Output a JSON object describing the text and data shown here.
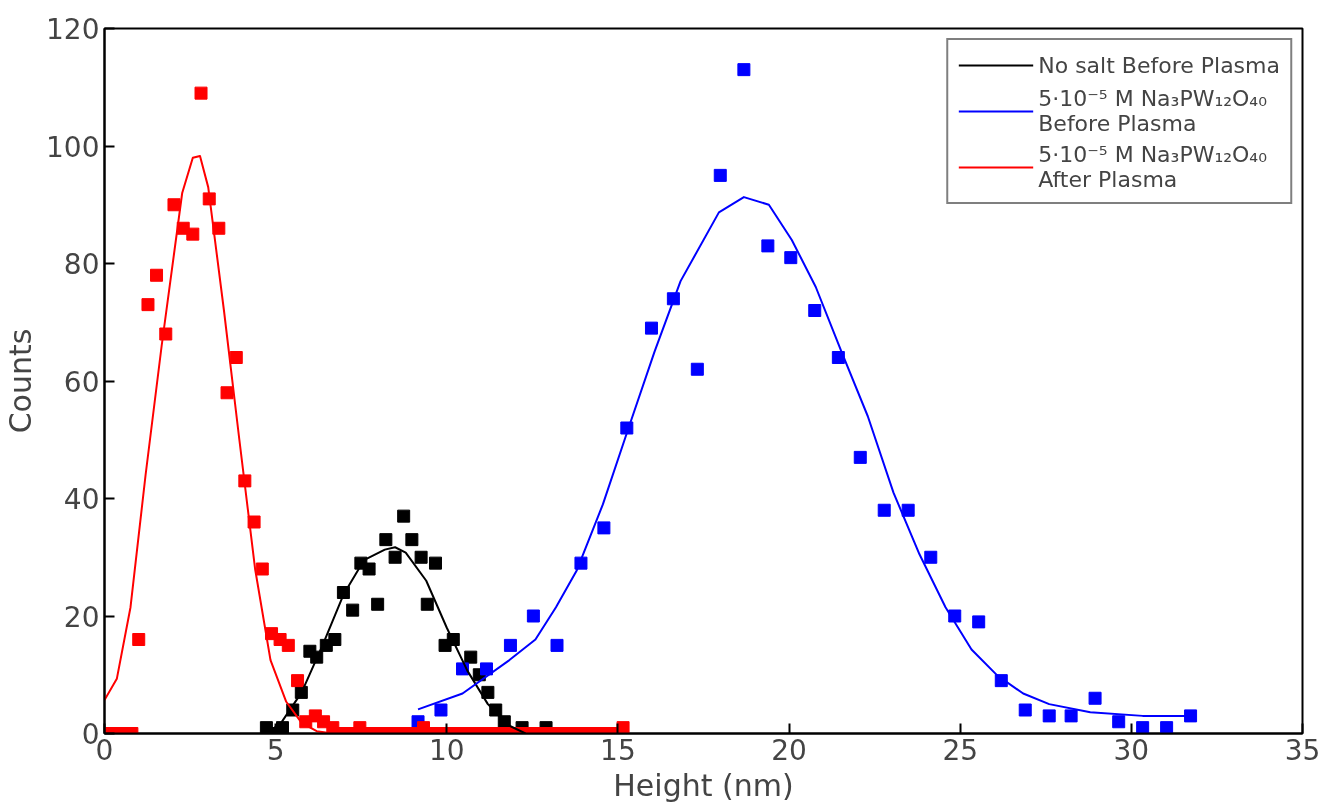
{
  "chart_data": {
    "type": "scatter",
    "xlabel": "Height (nm)",
    "ylabel": "Counts",
    "xlim": [
      0,
      35
    ],
    "ylim": [
      0,
      120
    ],
    "xticks": [
      0,
      5,
      10,
      15,
      20,
      25,
      30,
      35
    ],
    "yticks": [
      0,
      20,
      40,
      60,
      80,
      100,
      120
    ],
    "grid": false,
    "legend": "top right",
    "series": [
      {
        "marker": "square",
        "color": "#000000",
        "x": [
          4.73,
          4.98,
          5.2,
          5.5,
          5.75,
          6.0,
          6.2,
          6.48,
          6.73,
          6.98,
          7.25,
          7.49,
          7.73,
          7.98,
          8.22,
          8.49,
          8.74,
          8.98,
          9.25,
          9.43,
          9.67,
          9.95,
          10.19,
          10.43,
          10.7,
          10.95,
          11.2,
          11.43,
          11.68,
          12.2,
          12.9
        ],
        "values": [
          1,
          0,
          1,
          4,
          7,
          14,
          13,
          15,
          16,
          24,
          21,
          29,
          28,
          22,
          33,
          30,
          37,
          33,
          30,
          22,
          29,
          15,
          16,
          null,
          13,
          10,
          7,
          4,
          2,
          1,
          1
        ]
      },
      {
        "marker": "square",
        "color": "#0000ff",
        "x": [
          9.16,
          9.83,
          10.46,
          11.16,
          11.86,
          12.53,
          13.22,
          13.92,
          14.59,
          15.26,
          15.98,
          16.62,
          17.32,
          17.99,
          18.68,
          19.38,
          20.05,
          20.75,
          21.44,
          22.08,
          22.78,
          23.48,
          24.14,
          24.84,
          25.54,
          26.2,
          26.9,
          27.6,
          28.24,
          28.94,
          29.63,
          30.33,
          31.03,
          31.73
        ],
        "values": [
          2,
          4,
          11,
          11,
          15,
          20,
          15,
          29,
          35,
          52,
          69,
          74,
          62,
          95,
          113,
          83,
          81,
          72,
          64,
          47,
          38,
          38,
          30,
          20,
          19,
          9,
          4,
          3,
          3,
          6,
          2,
          1,
          1,
          3
        ]
      },
      {
        "marker": "square",
        "color": "#ff0000",
        "x": [
          0.2,
          0.5,
          0.8,
          1.0,
          1.27,
          1.52,
          1.79,
          2.03,
          2.3,
          2.58,
          2.82,
          3.06,
          3.34,
          3.58,
          3.85,
          4.1,
          4.37,
          4.61,
          4.88,
          5.13,
          5.37,
          5.64,
          5.88,
          6.16,
          6.4,
          6.67,
          6.93,
          7.2,
          7.46,
          7.73,
          7.99,
          8.26,
          8.52,
          8.79,
          9.05,
          9.32,
          9.58,
          9.85,
          10.11,
          10.38,
          10.64,
          10.91,
          11.17,
          11.44,
          11.7,
          11.97,
          12.23,
          12.5,
          12.76,
          13.03,
          13.29,
          13.56,
          13.82,
          14.09,
          14.35,
          14.62,
          14.88,
          15.15
        ],
        "values": [
          0,
          0,
          0,
          16,
          73,
          78,
          68,
          90,
          86,
          85,
          109,
          91,
          86,
          58,
          64,
          43,
          36,
          28,
          17,
          16,
          15,
          9,
          2,
          3,
          2,
          1,
          0,
          0,
          1,
          0,
          0,
          0,
          0,
          0,
          0,
          1,
          0,
          0,
          0,
          0,
          0,
          0,
          0,
          0,
          0,
          0,
          0,
          0,
          0,
          0,
          0,
          0,
          0,
          0,
          0,
          0,
          0,
          1
        ]
      },
      {
        "type": "line",
        "name": "No salt Before Plasma",
        "color": "#000000",
        "x": [
          4.73,
          5.16,
          5.76,
          6.37,
          6.98,
          7.58,
          8.19,
          8.49,
          8.8,
          9.4,
          10.0,
          10.6,
          11.2,
          11.8,
          12.3
        ],
        "values": [
          0,
          1.8,
          7,
          15,
          23.6,
          29.5,
          31.3,
          31.7,
          30.8,
          26,
          18,
          10.7,
          5,
          1.4,
          0
        ]
      },
      {
        "type": "line",
        "name": "5·10⁻⁵ M Na₃PW₁₂O₄₀\nBefore Plasma",
        "color": "#0000ff",
        "x": [
          9.16,
          10.46,
          11.83,
          12.59,
          13.19,
          13.8,
          14.56,
          15.31,
          16.07,
          16.83,
          17.95,
          18.68,
          19.41,
          20.08,
          20.78,
          21.53,
          22.3,
          23.05,
          23.81,
          24.57,
          25.33,
          26.08,
          26.84,
          27.6,
          28.8,
          30.33,
          31.85
        ],
        "values": [
          4.1,
          6.8,
          12.5,
          16,
          21.5,
          27.8,
          39,
          52,
          65,
          77,
          88.7,
          91.3,
          90,
          84,
          76,
          65,
          54,
          41,
          30.5,
          21.5,
          14.3,
          9.9,
          6.8,
          5,
          3.6,
          3,
          3
        ]
      },
      {
        "type": "line",
        "name": "5·10⁻⁵ M Na₃PW₁₂O₄₀\nAfter Plasma",
        "color": "#ff0000",
        "x": [
          0,
          0.36,
          0.76,
          1.2,
          1.67,
          2.27,
          2.58,
          2.79,
          3.03,
          3.49,
          3.94,
          4.4,
          4.85,
          5.31,
          5.76,
          6.2,
          6.67
        ],
        "values": [
          5.7,
          9.3,
          21.5,
          44,
          66,
          92,
          98,
          98.3,
          93,
          72,
          50,
          28,
          12.5,
          5.4,
          1.8,
          0.4,
          0
        ]
      }
    ]
  }
}
